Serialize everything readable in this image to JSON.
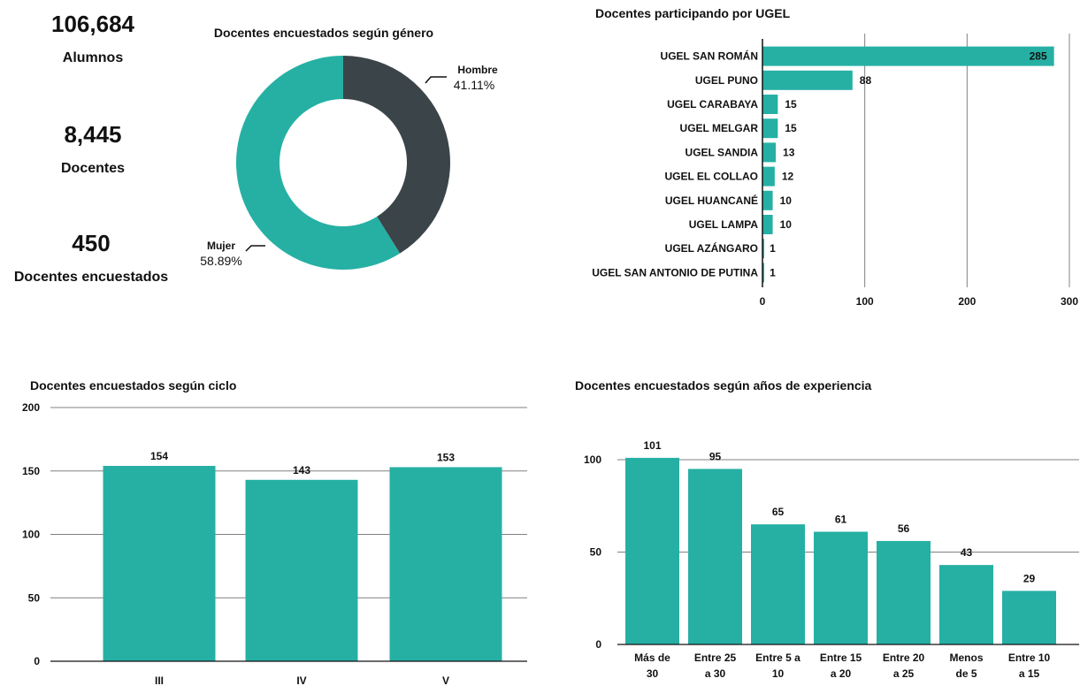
{
  "kpis": [
    {
      "value": "106,684",
      "label": "Alumnos"
    },
    {
      "value": "8,445",
      "label": "Docentes"
    },
    {
      "value": "450",
      "label": "Docentes encuestados"
    }
  ],
  "colors": {
    "teal": "#26b0a4",
    "dark": "#3b4549",
    "grid": "#808080"
  },
  "chart_data": [
    {
      "type": "pie",
      "title": "Docentes encuestados según género",
      "labels": [
        "Hombre",
        "Mujer"
      ],
      "values": [
        41.11,
        58.89
      ],
      "value_labels": [
        "41.11%",
        "58.89%"
      ],
      "colors": [
        "#3b4549",
        "#26b0a4"
      ]
    },
    {
      "type": "bar",
      "orientation": "horizontal",
      "title": "Docentes participando por UGEL",
      "categories": [
        "UGEL SAN ROMÁN",
        "UGEL PUNO",
        "UGEL CARABAYA",
        "UGEL MELGAR",
        "UGEL SANDIA",
        "UGEL EL COLLAO",
        "UGEL HUANCANÉ",
        "UGEL LAMPA",
        "UGEL AZÁNGARO",
        "UGEL SAN ANTONIO DE PUTINA"
      ],
      "values": [
        285,
        88,
        15,
        15,
        13,
        12,
        10,
        10,
        1,
        1
      ],
      "xlim": [
        0,
        300
      ],
      "xticks": [
        "0",
        "100",
        "200",
        "300"
      ],
      "grid": true
    },
    {
      "type": "bar",
      "title": "Docentes encuestados según ciclo",
      "categories": [
        "III",
        "IV",
        "V"
      ],
      "values": [
        154,
        143,
        153
      ],
      "ylim": [
        0,
        200
      ],
      "yticks": [
        "0",
        "50",
        "100",
        "150",
        "200"
      ],
      "grid": true
    },
    {
      "type": "bar",
      "title": "Docentes encuestados según años de experiencia",
      "categories": [
        [
          "Más de",
          "30"
        ],
        [
          "Entre 25",
          "a 30"
        ],
        [
          "Entre 5 a",
          "10"
        ],
        [
          "Entre 15",
          "a 20"
        ],
        [
          "Entre 20",
          "a 25"
        ],
        [
          "Menos",
          "de 5"
        ],
        [
          "Entre 10",
          "a 15"
        ]
      ],
      "values": [
        101,
        95,
        65,
        61,
        56,
        43,
        29
      ],
      "ylim": [
        0,
        130
      ],
      "yticks": [
        "0",
        "50",
        "100"
      ],
      "grid": true
    }
  ]
}
